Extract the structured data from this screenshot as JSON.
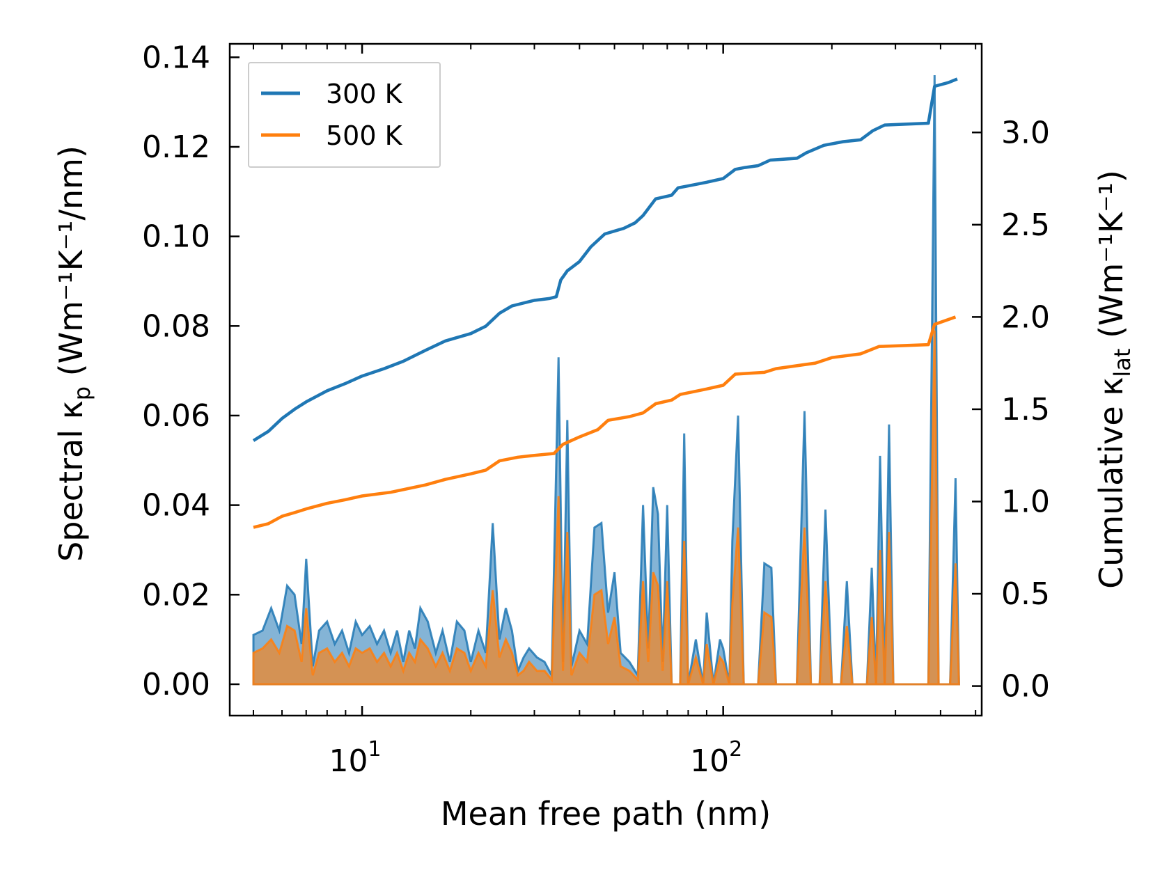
{
  "chart_data": {
    "type": "line",
    "title": "",
    "xlabel": "Mean free path (nm)",
    "xscale": "log",
    "xlim": [
      4.3,
      520
    ],
    "x_ticks": [
      {
        "base": "10",
        "exp": "1"
      },
      {
        "base": "10",
        "exp": "2"
      }
    ],
    "ylabel_left": {
      "prefix": "Spectral κ",
      "sub": "p",
      "units": " (Wm⁻¹K⁻¹/nm)"
    },
    "ylim_left": [
      -0.007,
      0.143
    ],
    "yticks_left": [
      "0.00",
      "0.02",
      "0.04",
      "0.06",
      "0.08",
      "0.10",
      "0.12",
      "0.14"
    ],
    "ylabel_right": {
      "prefix": "Cumulative κ",
      "sub": "lat",
      "units": " (Wm⁻¹K⁻¹)"
    },
    "ylim_right": [
      -0.16,
      3.48
    ],
    "yticks_right": [
      "0.0",
      "0.5",
      "1.0",
      "1.5",
      "2.0",
      "2.5",
      "3.0"
    ],
    "legend": {
      "position": "top-left",
      "entries": [
        "300 K",
        "500 K"
      ]
    },
    "colors": {
      "300K": "#1f77b4",
      "500K": "#ff7f0e"
    },
    "cumulative_series": [
      {
        "name": "300 K",
        "color": "#1f77b4",
        "points": [
          [
            5,
            1.33
          ],
          [
            5.5,
            1.38
          ],
          [
            6,
            1.45
          ],
          [
            6.5,
            1.5
          ],
          [
            7,
            1.54
          ],
          [
            8,
            1.6
          ],
          [
            9,
            1.64
          ],
          [
            10,
            1.68
          ],
          [
            11.5,
            1.72
          ],
          [
            13,
            1.76
          ],
          [
            15,
            1.82
          ],
          [
            17,
            1.87
          ],
          [
            20,
            1.91
          ],
          [
            22,
            1.95
          ],
          [
            24,
            2.02
          ],
          [
            26,
            2.06
          ],
          [
            30,
            2.09
          ],
          [
            33,
            2.1
          ],
          [
            34.5,
            2.11
          ],
          [
            35.5,
            2.2
          ],
          [
            37,
            2.25
          ],
          [
            40,
            2.3
          ],
          [
            43,
            2.38
          ],
          [
            47,
            2.45
          ],
          [
            53,
            2.48
          ],
          [
            57,
            2.51
          ],
          [
            60,
            2.55
          ],
          [
            65,
            2.64
          ],
          [
            72,
            2.66
          ],
          [
            75,
            2.7
          ],
          [
            80,
            2.71
          ],
          [
            90,
            2.73
          ],
          [
            100,
            2.75
          ],
          [
            108,
            2.8
          ],
          [
            115,
            2.81
          ],
          [
            125,
            2.82
          ],
          [
            135,
            2.85
          ],
          [
            160,
            2.86
          ],
          [
            170,
            2.89
          ],
          [
            190,
            2.93
          ],
          [
            215,
            2.95
          ],
          [
            240,
            2.96
          ],
          [
            260,
            3.01
          ],
          [
            280,
            3.04
          ],
          [
            370,
            3.05
          ],
          [
            385,
            3.25
          ],
          [
            420,
            3.27
          ],
          [
            445,
            3.29
          ]
        ]
      },
      {
        "name": "500 K",
        "color": "#ff7f0e",
        "points": [
          [
            5,
            0.86
          ],
          [
            5.5,
            0.88
          ],
          [
            6,
            0.92
          ],
          [
            6.5,
            0.94
          ],
          [
            7,
            0.96
          ],
          [
            8,
            0.99
          ],
          [
            9,
            1.01
          ],
          [
            10,
            1.03
          ],
          [
            12,
            1.05
          ],
          [
            15,
            1.09
          ],
          [
            17,
            1.12
          ],
          [
            20,
            1.15
          ],
          [
            22,
            1.17
          ],
          [
            24,
            1.22
          ],
          [
            27,
            1.24
          ],
          [
            30,
            1.25
          ],
          [
            34,
            1.26
          ],
          [
            36,
            1.31
          ],
          [
            40,
            1.35
          ],
          [
            45,
            1.39
          ],
          [
            48,
            1.44
          ],
          [
            55,
            1.46
          ],
          [
            60,
            1.48
          ],
          [
            65,
            1.53
          ],
          [
            72,
            1.55
          ],
          [
            76,
            1.58
          ],
          [
            90,
            1.61
          ],
          [
            100,
            1.63
          ],
          [
            108,
            1.69
          ],
          [
            130,
            1.7
          ],
          [
            140,
            1.72
          ],
          [
            180,
            1.75
          ],
          [
            200,
            1.78
          ],
          [
            240,
            1.8
          ],
          [
            270,
            1.84
          ],
          [
            370,
            1.85
          ],
          [
            385,
            1.96
          ],
          [
            440,
            2.0
          ]
        ]
      }
    ],
    "spectral_series": [
      {
        "name": "300 K",
        "color": "#1f77b4",
        "points": [
          [
            5,
            0.011
          ],
          [
            5.3,
            0.012
          ],
          [
            5.6,
            0.017
          ],
          [
            5.9,
            0.012
          ],
          [
            6.2,
            0.022
          ],
          [
            6.5,
            0.02
          ],
          [
            6.8,
            0.009
          ],
          [
            7.0,
            0.028
          ],
          [
            7.3,
            0.004
          ],
          [
            7.6,
            0.012
          ],
          [
            8.0,
            0.014
          ],
          [
            8.4,
            0.009
          ],
          [
            8.8,
            0.012
          ],
          [
            9.2,
            0.007
          ],
          [
            9.6,
            0.014
          ],
          [
            10.0,
            0.011
          ],
          [
            10.5,
            0.013
          ],
          [
            11.0,
            0.009
          ],
          [
            11.5,
            0.012
          ],
          [
            12.0,
            0.007
          ],
          [
            12.5,
            0.012
          ],
          [
            13.0,
            0.005
          ],
          [
            13.5,
            0.012
          ],
          [
            14.0,
            0.008
          ],
          [
            14.5,
            0.017
          ],
          [
            15.2,
            0.014
          ],
          [
            16.0,
            0.007
          ],
          [
            16.7,
            0.012
          ],
          [
            17.5,
            0.005
          ],
          [
            18.3,
            0.014
          ],
          [
            19.2,
            0.012
          ],
          [
            20.0,
            0.005
          ],
          [
            21.0,
            0.012
          ],
          [
            22.0,
            0.007
          ],
          [
            23.0,
            0.036
          ],
          [
            24.0,
            0.01
          ],
          [
            25.0,
            0.017
          ],
          [
            26.0,
            0.012
          ],
          [
            27.0,
            0.003
          ],
          [
            28.0,
            0.006
          ],
          [
            29.0,
            0.008
          ],
          [
            30.5,
            0.006
          ],
          [
            32.0,
            0.005
          ],
          [
            33.5,
            0.002
          ],
          [
            35.0,
            0.073
          ],
          [
            36.0,
            0.005
          ],
          [
            37.0,
            0.059
          ],
          [
            38.0,
            0.004
          ],
          [
            40.0,
            0.012
          ],
          [
            42.0,
            0.009
          ],
          [
            44.0,
            0.035
          ],
          [
            46.0,
            0.036
          ],
          [
            48.0,
            0.016
          ],
          [
            50.0,
            0.025
          ],
          [
            52.0,
            0.007
          ],
          [
            55.0,
            0.005
          ],
          [
            58.0,
            0.002
          ],
          [
            60.0,
            0.04
          ],
          [
            62.0,
            0.008
          ],
          [
            64.0,
            0.044
          ],
          [
            66.0,
            0.038
          ],
          [
            68.0,
            0.005
          ],
          [
            70.0,
            0.04
          ],
          [
            72.0,
            0.0
          ],
          [
            76.0,
            0.0
          ],
          [
            78.0,
            0.056
          ],
          [
            80.0,
            0.0
          ],
          [
            84.0,
            0.01
          ],
          [
            88.0,
            0.0
          ],
          [
            90.0,
            0.016
          ],
          [
            94.0,
            0.0
          ],
          [
            98.0,
            0.01
          ],
          [
            100.0,
            0.008
          ],
          [
            104.0,
            0.0
          ],
          [
            106.0,
            0.032
          ],
          [
            110.0,
            0.06
          ],
          [
            114.0,
            0.0
          ],
          [
            125.0,
            0.0
          ],
          [
            130.0,
            0.027
          ],
          [
            136.0,
            0.026
          ],
          [
            140.0,
            0.0
          ],
          [
            160.0,
            0.0
          ],
          [
            168.0,
            0.061
          ],
          [
            175.0,
            0.0
          ],
          [
            185.0,
            0.0
          ],
          [
            192.0,
            0.039
          ],
          [
            200.0,
            0.0
          ],
          [
            212.0,
            0.0
          ],
          [
            220.0,
            0.023
          ],
          [
            228.0,
            0.0
          ],
          [
            250.0,
            0.0
          ],
          [
            258.0,
            0.026
          ],
          [
            265.0,
            0.0
          ],
          [
            272.0,
            0.051
          ],
          [
            280.0,
            0.0
          ],
          [
            288.0,
            0.058
          ],
          [
            296.0,
            0.0
          ],
          [
            370.0,
            0.0
          ],
          [
            385.0,
            0.136
          ],
          [
            395.0,
            0.0
          ],
          [
            425.0,
            0.0
          ],
          [
            440.0,
            0.046
          ],
          [
            450.0,
            0.0
          ]
        ]
      },
      {
        "name": "500 K",
        "color": "#ff7f0e",
        "points": [
          [
            5,
            0.007
          ],
          [
            5.3,
            0.008
          ],
          [
            5.6,
            0.01
          ],
          [
            5.9,
            0.007
          ],
          [
            6.2,
            0.013
          ],
          [
            6.5,
            0.012
          ],
          [
            6.8,
            0.005
          ],
          [
            7.0,
            0.017
          ],
          [
            7.3,
            0.002
          ],
          [
            7.6,
            0.007
          ],
          [
            8.0,
            0.008
          ],
          [
            8.4,
            0.005
          ],
          [
            8.8,
            0.007
          ],
          [
            9.2,
            0.004
          ],
          [
            9.6,
            0.008
          ],
          [
            10.0,
            0.007
          ],
          [
            10.5,
            0.008
          ],
          [
            11.0,
            0.005
          ],
          [
            11.5,
            0.007
          ],
          [
            12.0,
            0.004
          ],
          [
            12.5,
            0.007
          ],
          [
            13.0,
            0.003
          ],
          [
            13.5,
            0.007
          ],
          [
            14.0,
            0.005
          ],
          [
            14.5,
            0.01
          ],
          [
            15.2,
            0.008
          ],
          [
            16.0,
            0.004
          ],
          [
            16.7,
            0.007
          ],
          [
            17.5,
            0.003
          ],
          [
            18.3,
            0.008
          ],
          [
            19.2,
            0.007
          ],
          [
            20.0,
            0.003
          ],
          [
            21.0,
            0.007
          ],
          [
            22.0,
            0.004
          ],
          [
            23.0,
            0.021
          ],
          [
            24.0,
            0.006
          ],
          [
            25.0,
            0.01
          ],
          [
            26.0,
            0.007
          ],
          [
            27.0,
            0.002
          ],
          [
            28.0,
            0.003
          ],
          [
            29.0,
            0.005
          ],
          [
            30.5,
            0.003
          ],
          [
            32.0,
            0.003
          ],
          [
            33.5,
            0.001
          ],
          [
            35.0,
            0.042
          ],
          [
            36.0,
            0.003
          ],
          [
            37.0,
            0.034
          ],
          [
            38.0,
            0.002
          ],
          [
            40.0,
            0.007
          ],
          [
            42.0,
            0.005
          ],
          [
            44.0,
            0.02
          ],
          [
            46.0,
            0.021
          ],
          [
            48.0,
            0.009
          ],
          [
            50.0,
            0.015
          ],
          [
            52.0,
            0.004
          ],
          [
            55.0,
            0.003
          ],
          [
            58.0,
            0.001
          ],
          [
            60.0,
            0.023
          ],
          [
            62.0,
            0.005
          ],
          [
            64.0,
            0.025
          ],
          [
            66.0,
            0.022
          ],
          [
            68.0,
            0.003
          ],
          [
            70.0,
            0.023
          ],
          [
            72.0,
            0.0
          ],
          [
            76.0,
            0.0
          ],
          [
            78.0,
            0.032
          ],
          [
            80.0,
            0.0
          ],
          [
            84.0,
            0.006
          ],
          [
            88.0,
            0.0
          ],
          [
            90.0,
            0.009
          ],
          [
            94.0,
            0.0
          ],
          [
            98.0,
            0.006
          ],
          [
            100.0,
            0.005
          ],
          [
            104.0,
            0.0
          ],
          [
            106.0,
            0.018
          ],
          [
            110.0,
            0.035
          ],
          [
            114.0,
            0.0
          ],
          [
            125.0,
            0.0
          ],
          [
            130.0,
            0.016
          ],
          [
            136.0,
            0.015
          ],
          [
            140.0,
            0.0
          ],
          [
            160.0,
            0.0
          ],
          [
            168.0,
            0.035
          ],
          [
            175.0,
            0.0
          ],
          [
            185.0,
            0.0
          ],
          [
            192.0,
            0.023
          ],
          [
            200.0,
            0.0
          ],
          [
            212.0,
            0.0
          ],
          [
            220.0,
            0.013
          ],
          [
            228.0,
            0.0
          ],
          [
            250.0,
            0.0
          ],
          [
            258.0,
            0.015
          ],
          [
            265.0,
            0.0
          ],
          [
            272.0,
            0.03
          ],
          [
            280.0,
            0.0
          ],
          [
            288.0,
            0.034
          ],
          [
            296.0,
            0.0
          ],
          [
            370.0,
            0.0
          ],
          [
            385.0,
            0.079
          ],
          [
            395.0,
            0.0
          ],
          [
            425.0,
            0.0
          ],
          [
            440.0,
            0.027
          ],
          [
            450.0,
            0.0
          ]
        ]
      }
    ]
  }
}
